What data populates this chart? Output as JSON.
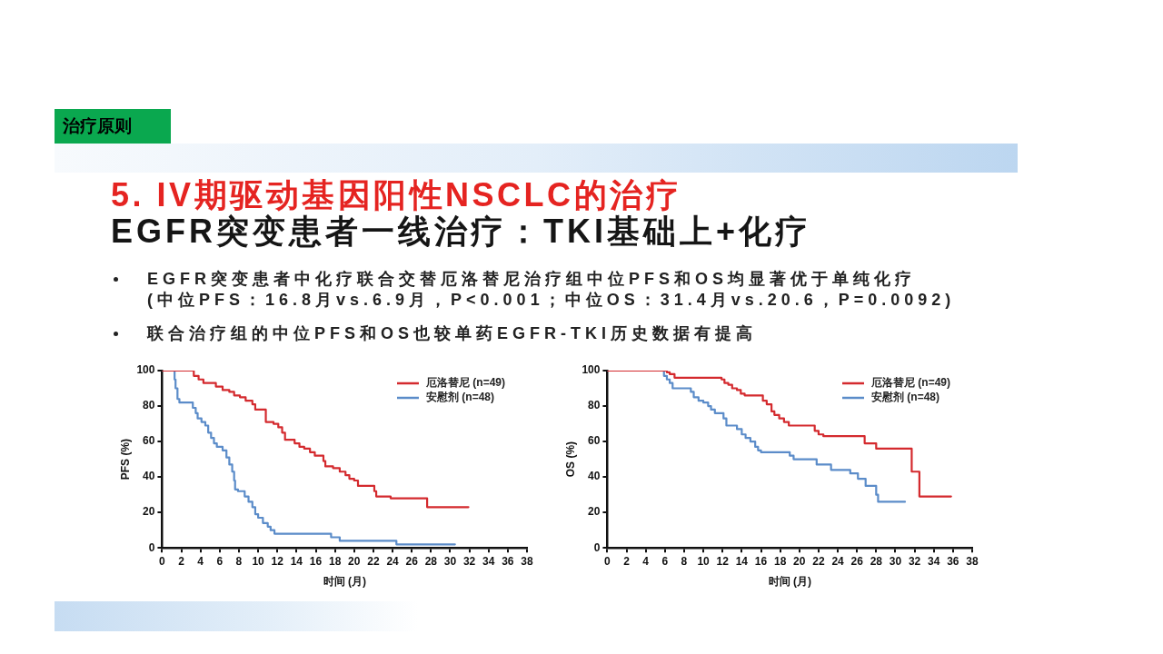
{
  "chart_data": [
    {
      "type": "step",
      "title": "5. IV期驱动基因阳性NSCLC的治疗",
      "subtitle": "EGFR突变患者一线治疗：TKI基础上+化疗",
      "annotations": [
        "治疗原则",
        "EGFR突变患者中化疗联合交替厄洛替尼治疗组中位PFS和OS均显著优于单纯化疗\n(中位PFS：16.8月vs.6.9月，P<0.001；中位OS：31.4月vs.20.6，P=0.0092)",
        "联合治疗组的中位PFS和OS也较单药EGFR-TKI历史数据有提高"
      ],
      "xlabel": "时间 (月)",
      "ylabel": "PFS (%)",
      "xlim": [
        0,
        38
      ],
      "xticks": [
        0,
        2,
        4,
        6,
        8,
        10,
        12,
        14,
        16,
        18,
        20,
        22,
        24,
        26,
        28,
        30,
        32,
        34,
        36,
        38
      ],
      "ylim": [
        0,
        100
      ],
      "yticks": [
        0,
        20,
        40,
        60,
        80,
        100
      ],
      "legend": "top right",
      "series": [
        {
          "name": "厄洛替尼 (n=49)",
          "color": "#d42a2e",
          "x": [
            0,
            3.3,
            3.8,
            4.3,
            5.6,
            6.3,
            7.0,
            7.5,
            8.1,
            8.7,
            9.4,
            9.7,
            10.8,
            11.6,
            12.1,
            12.5,
            12.8,
            13.8,
            14.3,
            14.8,
            15.4,
            15.9,
            16.8,
            17.0,
            17.8,
            18.5,
            19.1,
            19.5,
            20.0,
            20.4,
            22.1,
            22.3,
            23.8,
            27.6,
            31.9
          ],
          "values": [
            100,
            97,
            95,
            93,
            91,
            89,
            88,
            86,
            85,
            83,
            81,
            78,
            71,
            70,
            68,
            65,
            61,
            59,
            57,
            56,
            54,
            52,
            49,
            46,
            45,
            43,
            41,
            39,
            38,
            35,
            32,
            29,
            28,
            23,
            23
          ]
        },
        {
          "name": "安慰剂 (n=48)",
          "color": "#5b8cc9",
          "x": [
            0,
            1.3,
            1.4,
            1.6,
            1.8,
            3.2,
            3.5,
            3.7,
            4.1,
            4.5,
            4.8,
            5.1,
            5.4,
            5.7,
            6.3,
            6.7,
            7.0,
            7.3,
            7.5,
            7.6,
            7.9,
            8.6,
            9.0,
            9.4,
            9.7,
            10.0,
            10.5,
            11.0,
            11.3,
            11.7,
            17.6,
            18.5,
            24.4,
            30.5
          ],
          "values": [
            100,
            95,
            90,
            84,
            82,
            79,
            76,
            73,
            71,
            69,
            65,
            62,
            59,
            57,
            55,
            51,
            47,
            43,
            38,
            33,
            32,
            29,
            26,
            23,
            19,
            17,
            14,
            12,
            10,
            8,
            6,
            4,
            2,
            2
          ]
        }
      ]
    },
    {
      "type": "step",
      "xlabel": "时间 (月)",
      "ylabel": "OS (%)",
      "xlim": [
        0,
        38
      ],
      "xticks": [
        0,
        2,
        4,
        6,
        8,
        10,
        12,
        14,
        16,
        18,
        20,
        22,
        24,
        26,
        28,
        30,
        32,
        34,
        36,
        38
      ],
      "ylim": [
        0,
        100
      ],
      "yticks": [
        0,
        20,
        40,
        60,
        80,
        100
      ],
      "legend": "top right",
      "series": [
        {
          "name": "厄洛替尼 (n=49)",
          "color": "#d42a2e",
          "x": [
            0,
            6.2,
            6.5,
            7.0,
            11.9,
            12.2,
            12.6,
            13.0,
            13.5,
            13.9,
            14.3,
            16.2,
            16.6,
            17.1,
            17.4,
            17.9,
            18.4,
            18.9,
            21.6,
            22.0,
            22.5,
            26.8,
            28.0,
            31.7,
            32.5,
            35.8
          ],
          "values": [
            100,
            99,
            98,
            96,
            95,
            93,
            92,
            90,
            89,
            87,
            86,
            83,
            81,
            77,
            75,
            73,
            71,
            69,
            66,
            64,
            63,
            59,
            56,
            43,
            29,
            29
          ]
        },
        {
          "name": "安慰剂 (n=48)",
          "color": "#5b8cc9",
          "x": [
            0,
            5.9,
            6.2,
            6.5,
            6.8,
            8.7,
            9.0,
            9.5,
            10.0,
            10.5,
            10.8,
            11.2,
            12.1,
            12.4,
            13.5,
            14.0,
            14.4,
            14.9,
            15.4,
            15.7,
            16.0,
            19.0,
            19.4,
            21.8,
            23.3,
            25.3,
            26.1,
            26.9,
            28.0,
            28.2,
            31.0
          ],
          "values": [
            100,
            97,
            95,
            93,
            90,
            88,
            85,
            83,
            82,
            80,
            78,
            76,
            73,
            69,
            67,
            64,
            62,
            60,
            57,
            55,
            54,
            52,
            50,
            47,
            44,
            42,
            39,
            35,
            30,
            26,
            26
          ]
        }
      ]
    }
  ]
}
